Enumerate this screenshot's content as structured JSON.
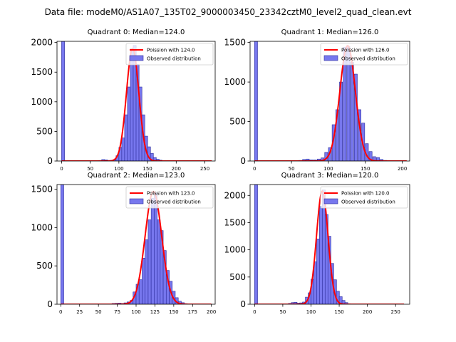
{
  "figure": {
    "suptitle": "Data file: modeM0/AS1A07_135T02_9000003450_23342cztM0_level2_quad_clean.evt"
  },
  "colors": {
    "bar_fill": "#7777ee",
    "bar_edge": "#2b2b9a",
    "fit_line": "#ff0000"
  },
  "chart_data": [
    {
      "type": "bar",
      "title": "Quadrant 0: Median=124.0",
      "xlim": [
        -8,
        268
      ],
      "ylim": [
        0,
        2020
      ],
      "xticks": [
        0,
        50,
        100,
        150,
        200,
        250
      ],
      "yticks": [
        0,
        500,
        1000,
        1500,
        2000
      ],
      "bin_width": 5.2,
      "zero_bin": 2020,
      "bins": [
        [
          60,
          5
        ],
        [
          65,
          10
        ],
        [
          70,
          25
        ],
        [
          75,
          20
        ],
        [
          80,
          10
        ],
        [
          85,
          10
        ],
        [
          90,
          25
        ],
        [
          95,
          90
        ],
        [
          100,
          230
        ],
        [
          105,
          390
        ],
        [
          110,
          780
        ],
        [
          115,
          1250
        ],
        [
          120,
          1900
        ],
        [
          125,
          1950
        ],
        [
          130,
          1630
        ],
        [
          135,
          1250
        ],
        [
          140,
          780
        ],
        [
          145,
          420
        ],
        [
          150,
          240
        ],
        [
          155,
          130
        ],
        [
          160,
          60
        ],
        [
          165,
          30
        ],
        [
          170,
          15
        ],
        [
          175,
          5
        ]
      ],
      "fit": {
        "mean": 124,
        "sigma": 10.8,
        "peak": 1900,
        "x_range": [
          0,
          262
        ]
      },
      "legend": {
        "line": "Poission with 124.0",
        "patch": "Observed distribution",
        "location": "upper right"
      }
    },
    {
      "type": "bar",
      "title": "Quadrant 1: Median=126.0",
      "xlim": [
        -6,
        210
      ],
      "ylim": [
        0,
        1515
      ],
      "xticks": [
        0,
        50,
        100,
        150,
        200
      ],
      "yticks": [
        0,
        500,
        1000,
        1500
      ],
      "bin_width": 4.1,
      "zero_bin": 1515,
      "bins": [
        [
          60,
          8
        ],
        [
          65,
          20
        ],
        [
          70,
          25
        ],
        [
          75,
          15
        ],
        [
          80,
          15
        ],
        [
          85,
          25
        ],
        [
          90,
          40
        ],
        [
          95,
          110
        ],
        [
          100,
          170
        ],
        [
          105,
          460
        ],
        [
          110,
          650
        ],
        [
          115,
          1000
        ],
        [
          120,
          1440
        ],
        [
          125,
          1450
        ],
        [
          130,
          1250
        ],
        [
          135,
          1100
        ],
        [
          140,
          650
        ],
        [
          145,
          480
        ],
        [
          150,
          220
        ],
        [
          155,
          120
        ],
        [
          160,
          55
        ],
        [
          165,
          45
        ],
        [
          170,
          20
        ],
        [
          175,
          8
        ]
      ],
      "fit": {
        "mean": 126,
        "sigma": 10.5,
        "peak": 1460,
        "x_range": [
          0,
          206
        ]
      },
      "legend": {
        "line": "Poission with 126.0",
        "patch": "Observed distribution",
        "location": "upper right"
      }
    },
    {
      "type": "bar",
      "title": "Quadrant 2: Median=123.0",
      "xlim": [
        -5,
        205
      ],
      "ylim": [
        0,
        1560
      ],
      "xticks": [
        0,
        25,
        50,
        75,
        100,
        125,
        150,
        175,
        200
      ],
      "yticks": [
        0,
        500,
        1000,
        1500
      ],
      "bin_width": 4,
      "zero_bin": 1560,
      "bins": [
        [
          68,
          10
        ],
        [
          72,
          12
        ],
        [
          76,
          15
        ],
        [
          80,
          10
        ],
        [
          84,
          18
        ],
        [
          88,
          30
        ],
        [
          92,
          50
        ],
        [
          96,
          160
        ],
        [
          100,
          260
        ],
        [
          104,
          320
        ],
        [
          108,
          600
        ],
        [
          112,
          840
        ],
        [
          116,
          1100
        ],
        [
          120,
          1380
        ],
        [
          124,
          1450
        ],
        [
          128,
          1100
        ],
        [
          132,
          960
        ],
        [
          136,
          700
        ],
        [
          140,
          440
        ],
        [
          144,
          300
        ],
        [
          148,
          170
        ],
        [
          152,
          85
        ],
        [
          156,
          40
        ],
        [
          160,
          20
        ],
        [
          164,
          8
        ]
      ],
      "fit": {
        "mean": 123,
        "sigma": 11,
        "peak": 1470,
        "x_range": [
          0,
          200
        ]
      },
      "legend": {
        "line": "Poission with 123.0",
        "patch": "Observed distribution",
        "location": "upper right"
      }
    },
    {
      "type": "bar",
      "title": "Quadrant 3: Median=120.0",
      "xlim": [
        -8,
        275
      ],
      "ylim": [
        0,
        2200
      ],
      "xticks": [
        0,
        50,
        100,
        150,
        200,
        250
      ],
      "yticks": [
        0,
        500,
        1000,
        1500,
        2000
      ],
      "bin_width": 5.3,
      "zero_bin": 2200,
      "bins": [
        [
          60,
          15
        ],
        [
          65,
          30
        ],
        [
          70,
          35
        ],
        [
          75,
          20
        ],
        [
          80,
          25
        ],
        [
          85,
          40
        ],
        [
          90,
          130
        ],
        [
          95,
          210
        ],
        [
          100,
          460
        ],
        [
          105,
          780
        ],
        [
          110,
          1200
        ],
        [
          115,
          1800
        ],
        [
          120,
          2100
        ],
        [
          125,
          1650
        ],
        [
          130,
          1250
        ],
        [
          135,
          750
        ],
        [
          140,
          450
        ],
        [
          145,
          240
        ],
        [
          150,
          140
        ],
        [
          155,
          70
        ],
        [
          160,
          30
        ],
        [
          165,
          10
        ]
      ],
      "fit": {
        "mean": 120,
        "sigma": 10.2,
        "peak": 2080,
        "x_range": [
          0,
          265
        ]
      },
      "legend": {
        "line": "Poission with 120.0",
        "patch": "Observed distribution",
        "location": "upper right"
      }
    }
  ]
}
